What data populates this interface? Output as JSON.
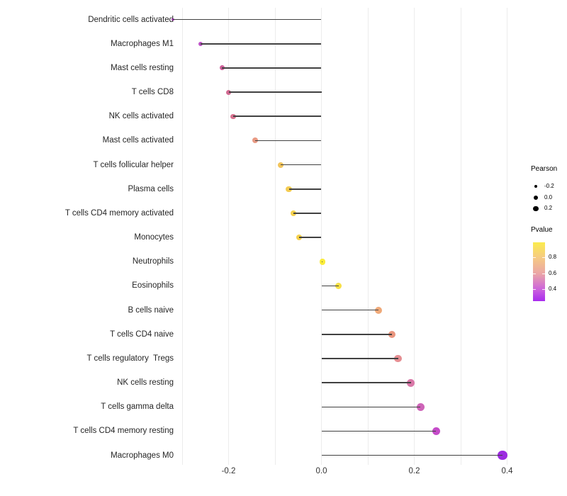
{
  "chart_data": {
    "type": "lollipop",
    "title": "",
    "xlabel": "",
    "ylabel": "",
    "grid": "vertical-only",
    "xlim": [
      -0.355,
      0.425
    ],
    "gridline_values": [
      -0.3,
      -0.2,
      -0.1,
      0.0,
      0.1,
      0.2,
      0.3,
      0.4
    ],
    "x_ticks": [
      {
        "value": -0.2,
        "label": "-0.2"
      },
      {
        "value": 0.0,
        "label": "0.0"
      },
      {
        "value": 0.2,
        "label": "0.2"
      },
      {
        "value": 0.4,
        "label": "0.4"
      }
    ],
    "series_note": "dot size encodes Pearson correlation, dot color encodes Pvalue",
    "points": [
      {
        "label": "Dendritic cells activated",
        "pearson": -0.32,
        "color": "#A033B0",
        "dia": 3.5
      },
      {
        "label": "Macrophages M1",
        "pearson": -0.26,
        "color": "#BC53C5",
        "dia": 6.5
      },
      {
        "label": "Mast cells resting",
        "pearson": -0.214,
        "color": "#CD5F99",
        "dia": 7
      },
      {
        "label": "T cells CD8",
        "pearson": -0.2,
        "color": "#D26991",
        "dia": 7
      },
      {
        "label": "NK cells activated",
        "pearson": -0.19,
        "color": "#D87390",
        "dia": 7.5
      },
      {
        "label": "Mast cells activated",
        "pearson": -0.142,
        "color": "#E89A84",
        "dia": 8
      },
      {
        "label": "T cells follicular helper",
        "pearson": -0.088,
        "color": "#F2C45B",
        "dia": 8
      },
      {
        "label": "Plasma cells",
        "pearson": -0.07,
        "color": "#F4CC52",
        "dia": 8.5
      },
      {
        "label": "T cells CD4 memory activated",
        "pearson": -0.06,
        "color": "#F5D14E",
        "dia": 8.5
      },
      {
        "label": "Monocytes",
        "pearson": -0.048,
        "color": "#F5D04B",
        "dia": 8.5
      },
      {
        "label": "Neutrophils",
        "pearson": 0.002,
        "color": "#FBEC3A",
        "dia": 8.5
      },
      {
        "label": "Eosinophils",
        "pearson": 0.037,
        "color": "#F8E046",
        "dia": 9
      },
      {
        "label": "B cells naive",
        "pearson": 0.123,
        "color": "#EFA979",
        "dia": 10
      },
      {
        "label": "T cells CD4 naive",
        "pearson": 0.152,
        "color": "#E9957E",
        "dia": 10.5
      },
      {
        "label": "T cells regulatory  Tregs",
        "pearson": 0.165,
        "color": "#E58E92",
        "dia": 10.5
      },
      {
        "label": "NK cells resting",
        "pearson": 0.193,
        "color": "#D977A8",
        "dia": 11
      },
      {
        "label": "T cells gamma delta",
        "pearson": 0.213,
        "color": "#CE64B8",
        "dia": 11
      },
      {
        "label": "T cells CD4 memory resting",
        "pearson": 0.247,
        "color": "#C44BC8",
        "dia": 11.5
      },
      {
        "label": "Macrophages M0",
        "pearson": 0.39,
        "color": "#9C2BE0",
        "dia": 13.5
      }
    ],
    "legend": {
      "size_title": "Pearson",
      "size_items": [
        {
          "label": "-0.2",
          "dia": 4.5
        },
        {
          "label": "0.0",
          "dia": 6
        },
        {
          "label": "0.2",
          "dia": 7.5
        }
      ],
      "color_title": "Pvalue",
      "color_ticks": [
        {
          "label": "0.8",
          "pos": 0.25
        },
        {
          "label": "0.6",
          "pos": 0.53
        },
        {
          "label": "0.4",
          "pos": 0.8
        }
      ],
      "gradient": [
        {
          "stop": 0,
          "color": "#FBEC4D"
        },
        {
          "stop": 0.25,
          "color": "#F6CC82"
        },
        {
          "stop": 0.53,
          "color": "#EBA6A6"
        },
        {
          "stop": 0.8,
          "color": "#CC63DC"
        },
        {
          "stop": 1,
          "color": "#A82BEE"
        }
      ]
    },
    "colors": {
      "segment": "#414141",
      "gridline": "#ececec",
      "axis_text": "#333333",
      "label_text": "#262626",
      "background": "#ffffff"
    }
  }
}
